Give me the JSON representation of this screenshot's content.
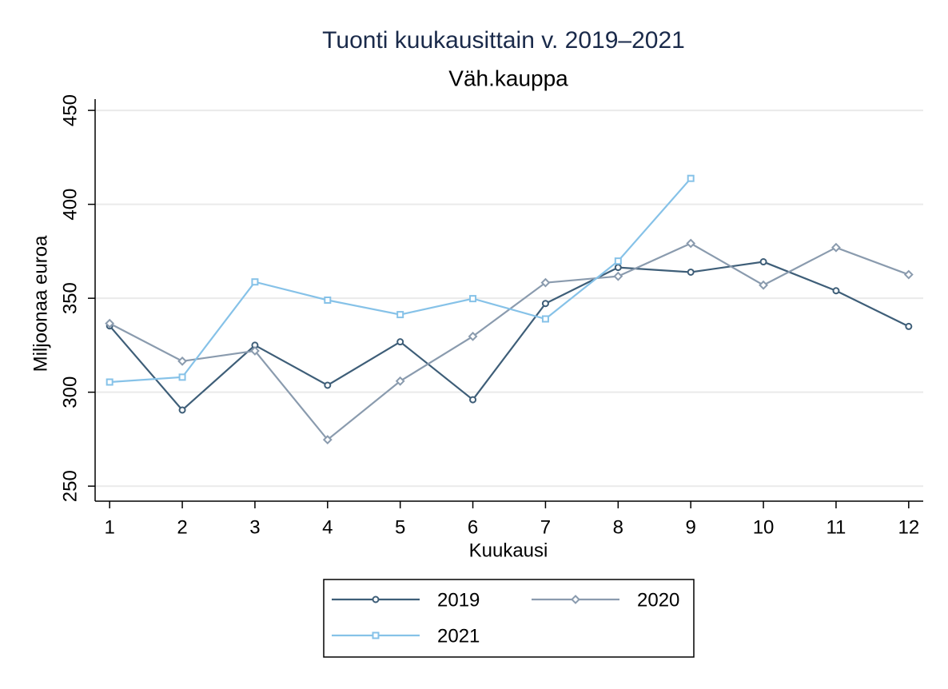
{
  "chart_data": {
    "type": "line",
    "title": "Tuonti kuukausittain v. 2019–2021",
    "subtitle": "Väh.kauppa",
    "x_label": "Kuukausi",
    "y_label": "Miljoonaa euroa",
    "x": [
      1,
      2,
      3,
      4,
      5,
      6,
      7,
      8,
      9,
      10,
      11,
      12
    ],
    "series": [
      {
        "name": "2019",
        "color": "#3e5e78",
        "marker": "circle",
        "values": [
          335.3,
          290.5,
          325,
          303.7,
          326.8,
          296,
          347.2,
          366.4,
          363.9,
          369.4,
          354,
          335
        ]
      },
      {
        "name": "2020",
        "color": "#8a9bae",
        "marker": "diamond",
        "values": [
          336.6,
          316.5,
          322,
          274.7,
          305.9,
          329.7,
          358.3,
          361.7,
          379.2,
          357,
          377,
          362.6
        ]
      },
      {
        "name": "2021",
        "color": "#86c2e8",
        "marker": "square",
        "values": [
          305.4,
          308,
          358.7,
          349,
          341.3,
          349.8,
          339,
          369.8,
          413.8,
          null,
          null,
          null
        ]
      }
    ],
    "xlim": [
      0.8,
      12.2
    ],
    "xticks": [
      1,
      2,
      3,
      4,
      5,
      6,
      7,
      8,
      9,
      10,
      11,
      12
    ],
    "ylim": [
      242,
      456
    ],
    "yticks": [
      250,
      300,
      350,
      400,
      450
    ],
    "grid": true
  }
}
